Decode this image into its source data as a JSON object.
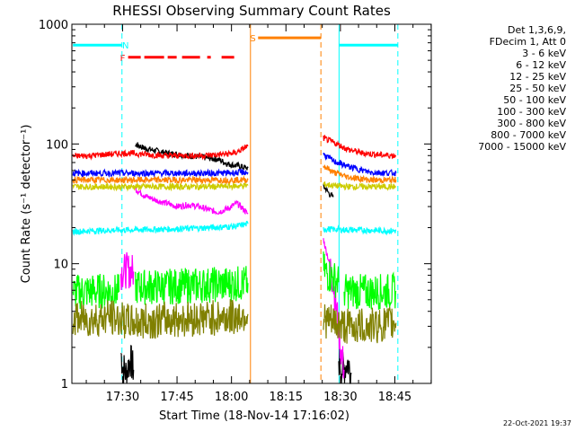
{
  "chart_data": {
    "type": "line",
    "title": "RHESSI Observing Summary Count Rates",
    "xlabel": "Start Time (18-Nov-14 17:16:02)",
    "ylabel": "Count Rate (s⁻¹ detector⁻¹)",
    "yscale": "log",
    "ylim": [
      1,
      1000
    ],
    "x_unit": "minutes after 17:16:02",
    "xlim": [
      0,
      99
    ],
    "x_ticks": [
      {
        "label": "17:30",
        "x": 13.97
      },
      {
        "label": "17:45",
        "x": 28.97
      },
      {
        "label": "18:00",
        "x": 43.97
      },
      {
        "label": "18:15",
        "x": 58.97
      },
      {
        "label": "18:30",
        "x": 73.97
      },
      {
        "label": "18:45",
        "x": 88.97
      }
    ],
    "y_ticks": [
      {
        "label": "1",
        "value": 1
      },
      {
        "label": "10",
        "value": 10
      },
      {
        "label": "100",
        "value": 100
      },
      {
        "label": "1000",
        "value": 1000
      }
    ],
    "legend_header": [
      "Det 1,3,6,9,",
      "FDecim 1, Att 0"
    ],
    "legend_position": "right",
    "series": [
      {
        "name": "3 - 6 keV",
        "color": "#000000",
        "segments": [
          {
            "x": [
              13.5,
              14,
              15,
              16,
              17
            ],
            "y": [
              1.8,
              1.4,
              1.2,
              1.6,
              1.3
            ]
          },
          {
            "x": [
              17.5,
              18,
              20,
              23,
              26,
              29,
              32,
              35,
              38,
              40.5,
              43,
              45.5,
              47,
              48.5
            ],
            "y": [
              96,
              98,
              92,
              88,
              84,
              82,
              80,
              78,
              76,
              74,
              68,
              66,
              64,
              63
            ]
          },
          {
            "x": [
              69.3,
              70,
              71,
              72
            ],
            "y": [
              44,
              42,
              38,
              36
            ]
          },
          {
            "x": [
              73.5,
              74.5,
              76,
              77
            ],
            "y": [
              1.6,
              1.3,
              1.5,
              1.2
            ]
          }
        ]
      },
      {
        "name": "6 - 12 keV",
        "color": "#ff00ff",
        "segments": [
          {
            "x": [
              13.5,
              15,
              17
            ],
            "y": [
              8.5,
              8.8,
              8.6
            ]
          },
          {
            "x": [
              17.5,
              20,
              23,
              26,
              29,
              32,
              35,
              38,
              40.5,
              43,
              45.5,
              47,
              48.5
            ],
            "y": [
              42,
              37,
              34,
              32,
              30,
              31,
              30,
              28,
              27,
              29,
              32,
              29,
              26
            ]
          },
          {
            "x": [
              69.3,
              70,
              71,
              72,
              73,
              74,
              75
            ],
            "y": [
              16,
              13,
              10,
              7,
              4,
              2,
              1.3
            ]
          }
        ]
      },
      {
        "name": "12 - 25 keV",
        "color": "#00ff00",
        "segments": [
          {
            "x": [
              0.3,
              5,
              10,
              13
            ],
            "y": [
              5.8,
              5.9,
              5.9,
              5.8
            ]
          },
          {
            "x": [
              17.5,
              25,
              35,
              45,
              48.5
            ],
            "y": [
              6.4,
              6.4,
              6.6,
              6.8,
              6.9
            ]
          },
          {
            "x": [
              69.3,
              70.5,
              72,
              73.5
            ],
            "y": [
              9.0,
              8.2,
              7.6,
              7.0
            ]
          },
          {
            "x": [
              75,
              82,
              89.3
            ],
            "y": [
              5.9,
              5.8,
              5.9
            ]
          }
        ]
      },
      {
        "name": "25 - 50 keV",
        "color": "#00ffff",
        "segments": [
          {
            "x": [
              0.3,
              5,
              10,
              17,
              25,
              35,
              45,
              48.5
            ],
            "y": [
              18.5,
              18.8,
              19.0,
              19.2,
              19.4,
              19.8,
              20.5,
              21.5
            ]
          },
          {
            "x": [
              69.3,
              75,
              82,
              89.3
            ],
            "y": [
              19.5,
              19.2,
              19.0,
              18.8
            ]
          }
        ]
      },
      {
        "name": "50 - 100 keV",
        "color": "#cccc00",
        "segments": [
          {
            "x": [
              0.3,
              10,
              20,
              30,
              40,
              48.5
            ],
            "y": [
              44,
              44,
              44,
              44,
              44,
              45
            ]
          },
          {
            "x": [
              69.3,
              75,
              82,
              89.3
            ],
            "y": [
              46,
              44,
              44,
              44
            ]
          }
        ]
      },
      {
        "name": "100 - 300 keV",
        "color": "#ff0000",
        "segments": [
          {
            "x": [
              0.3,
              5,
              10,
              15,
              20,
              25,
              30,
              35,
              40,
              45,
              48.5
            ],
            "y": [
              79,
              80,
              82,
              84,
              82,
              80,
              80,
              80,
              81,
              84,
              96
            ]
          },
          {
            "x": [
              69.3,
              71,
              73,
              76,
              80,
              85,
              89.3
            ],
            "y": [
              112,
              106,
              100,
              90,
              84,
              81,
              80
            ]
          }
        ]
      },
      {
        "name": "300 - 800 keV",
        "color": "#0000ff",
        "segments": [
          {
            "x": [
              0.3,
              10,
              20,
              30,
              40,
              48.5
            ],
            "y": [
              57,
              57,
              57,
              57,
              57,
              58
            ]
          },
          {
            "x": [
              69.3,
              72,
              76,
              82,
              89.3
            ],
            "y": [
              82,
              72,
              65,
              58,
              57
            ]
          }
        ]
      },
      {
        "name": "800 - 7000 keV",
        "color": "#ff8000",
        "segments": [
          {
            "x": [
              0.3,
              10,
              20,
              30,
              40,
              48.5
            ],
            "y": [
              50,
              50,
              50,
              50,
              50,
              50
            ]
          },
          {
            "x": [
              69.3,
              72,
              76,
              82,
              89.3
            ],
            "y": [
              66,
              58,
              53,
              50,
              50
            ]
          }
        ]
      },
      {
        "name": "7000 - 15000 keV",
        "color": "#808000",
        "segments": [
          {
            "x": [
              0.3,
              5,
              10,
              13.5,
              17,
              25,
              35,
              45,
              48.5
            ],
            "y": [
              3.5,
              3.4,
              3.6,
              3.4,
              3.2,
              3.4,
              3.5,
              3.6,
              3.8
            ]
          },
          {
            "x": [
              69.3,
              75,
              82,
              89.3
            ],
            "y": [
              3.4,
              3.0,
              3.0,
              3.2
            ]
          }
        ]
      }
    ],
    "vertical_lines": [
      {
        "x": 13.8,
        "color": "#00ffff",
        "style": "dashed"
      },
      {
        "x": 49.2,
        "color": "#ff8000",
        "style": "solid"
      },
      {
        "x": 68.6,
        "color": "#ff8000",
        "style": "dashed"
      },
      {
        "x": 73.6,
        "color": "#00ffff",
        "style": "solid"
      },
      {
        "x": 89.8,
        "color": "#00ffff",
        "style": "dashed"
      }
    ],
    "flag_bars": [
      {
        "label": "N",
        "color": "#00ffff",
        "y": 670,
        "dash": false,
        "segments": [
          [
            0.3,
            13.8
          ],
          [
            73.6,
            89.8
          ]
        ],
        "label_x": 14.8
      },
      {
        "label": "F",
        "color": "#ff0000",
        "y": 530,
        "dash": true,
        "segments": [
          [
            15.5,
            45.5
          ]
        ],
        "label_x": 14.0
      },
      {
        "label": "S",
        "color": "#ff8000",
        "y": 770,
        "dash": false,
        "segments": [
          [
            51.3,
            68.6
          ]
        ],
        "label_x": 49.9
      }
    ],
    "grid": false
  },
  "footer": {
    "date_stamp": "22-Oct-2021 19:37"
  }
}
